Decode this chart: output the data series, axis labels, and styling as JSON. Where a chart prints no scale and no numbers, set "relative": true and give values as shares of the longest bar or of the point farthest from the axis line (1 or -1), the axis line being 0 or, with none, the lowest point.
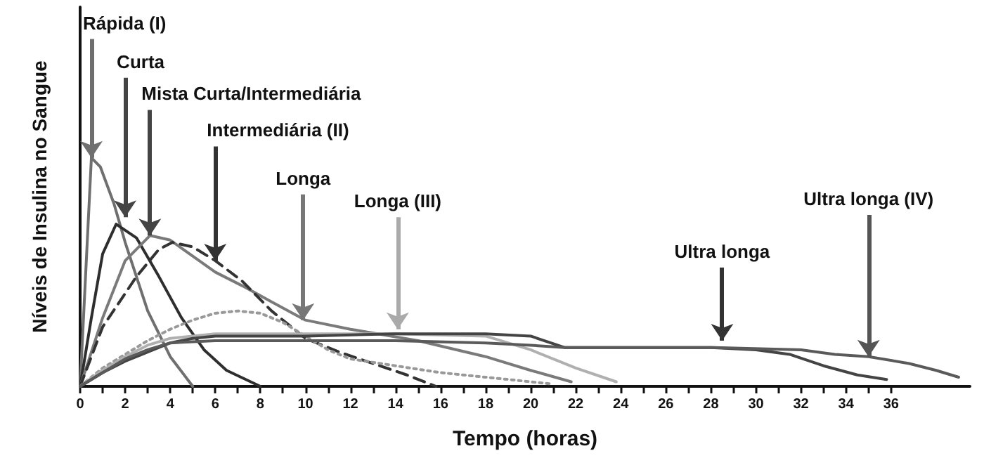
{
  "chart_data": {
    "type": "line",
    "xlabel": "Tempo (horas)",
    "ylabel": "Níveis de Insulina no Sangue",
    "relative": true,
    "grid": false,
    "marker": "none",
    "xlim": [
      0,
      39.5
    ],
    "xticks": [
      0,
      {
        "value": 1,
        "label": null
      },
      2,
      {
        "value": 3,
        "label": null
      },
      4,
      {
        "value": 5,
        "label": null
      },
      6,
      {
        "value": 7,
        "label": null
      },
      8,
      {
        "value": 9,
        "label": null
      },
      10,
      {
        "value": 11,
        "label": null
      },
      12,
      {
        "value": 13,
        "label": null
      },
      14,
      {
        "value": 15,
        "label": null
      },
      16,
      {
        "value": 17,
        "label": null
      },
      18,
      {
        "value": 19,
        "label": null
      },
      20,
      {
        "value": 21,
        "label": null
      },
      22,
      {
        "value": 23,
        "label": null
      },
      24,
      {
        "value": 25,
        "label": null
      },
      26,
      {
        "value": 27,
        "label": null
      },
      28,
      {
        "value": 29,
        "label": null
      },
      30,
      {
        "value": 31,
        "label": null
      },
      32,
      {
        "value": 33,
        "label": null
      },
      34,
      {
        "value": 35,
        "label": null
      },
      36
    ],
    "series": [
      {
        "color": "#6f6f6f",
        "line_style": "solid",
        "x": [
          0,
          0.25,
          0.5,
          0.9,
          1.5,
          2,
          3,
          4,
          5
        ],
        "values": [
          0,
          0.5,
          1,
          0.96,
          0.8,
          0.63,
          0.33,
          0.13,
          0
        ]
      },
      {
        "color": "#2e2e2e",
        "line_style": "solid",
        "x": [
          0,
          0.5,
          1,
          1.6,
          2.5,
          3.5,
          4.5,
          5.5,
          6.5,
          8
        ],
        "values": [
          0,
          0.3,
          0.58,
          0.71,
          0.65,
          0.48,
          0.3,
          0.16,
          0.07,
          0
        ]
      },
      {
        "color": "#7a7a7a",
        "line_style": "solid",
        "x": [
          0,
          1,
          2,
          3.1,
          4,
          5,
          6,
          7.2,
          8.5,
          10,
          12,
          15,
          18,
          20,
          21.8
        ],
        "values": [
          0,
          0.3,
          0.55,
          0.66,
          0.64,
          0.57,
          0.5,
          0.44,
          0.37,
          0.29,
          0.25,
          0.2,
          0.13,
          0.07,
          0.02
        ]
      },
      {
        "color": "#333333",
        "line_style": "dashed",
        "x": [
          0,
          1,
          2.5,
          3.5,
          4.1,
          5,
          6,
          7.2,
          8.5,
          10,
          11.5,
          13,
          14.5,
          15.8
        ],
        "values": [
          0,
          0.26,
          0.48,
          0.6,
          0.63,
          0.61,
          0.55,
          0.46,
          0.33,
          0.21,
          0.15,
          0.1,
          0.05,
          0
        ]
      },
      {
        "color": "#999999",
        "line_style": "dotted",
        "x": [
          0,
          1,
          2,
          3,
          4,
          5,
          6,
          7,
          8,
          9,
          10,
          11,
          12,
          14,
          16,
          18,
          21
        ],
        "values": [
          0,
          0.08,
          0.14,
          0.2,
          0.25,
          0.29,
          0.32,
          0.33,
          0.32,
          0.28,
          0.22,
          0.16,
          0.12,
          0.09,
          0.06,
          0.04,
          0.01
        ]
      },
      {
        "color": "#b0b0b0",
        "line_style": "solid",
        "x": [
          0,
          1,
          2,
          3,
          4,
          6,
          10,
          14,
          18,
          20,
          22,
          23.8
        ],
        "values": [
          0,
          0.07,
          0.13,
          0.18,
          0.21,
          0.23,
          0.23,
          0.23,
          0.22,
          0.16,
          0.08,
          0.02
        ]
      },
      {
        "color": "#444444",
        "line_style": "solid",
        "x": [
          0,
          1,
          2,
          3,
          4,
          5,
          6,
          10,
          14,
          18,
          20,
          21.5,
          24,
          28,
          30,
          31.5,
          33,
          34.5,
          35.8
        ],
        "values": [
          0,
          0.06,
          0.11,
          0.15,
          0.19,
          0.21,
          0.22,
          0.22,
          0.23,
          0.23,
          0.22,
          0.17,
          0.17,
          0.17,
          0.16,
          0.14,
          0.09,
          0.05,
          0.03
        ]
      },
      {
        "color": "#5a5a5a",
        "line_style": "solid",
        "x": [
          0,
          1,
          2,
          3,
          4,
          6,
          10,
          14,
          18,
          20,
          21.5,
          28,
          32,
          33.5,
          35,
          36.8,
          38,
          39
        ],
        "values": [
          0,
          0.06,
          0.12,
          0.16,
          0.19,
          0.2,
          0.2,
          0.2,
          0.19,
          0.18,
          0.17,
          0.17,
          0.16,
          0.14,
          0.13,
          0.1,
          0.07,
          0.04
        ]
      }
    ],
    "annotations": [
      {
        "text": "Rápida (I)",
        "x": 0.5,
        "y": 1
      },
      {
        "text": "Curta",
        "x": 2,
        "y": 0.74
      },
      {
        "text": "Mista Curta/Intermediária",
        "x": 3.1,
        "y": 0.66
      },
      {
        "text": "Intermediária (II)",
        "x": 6,
        "y": 0.55
      },
      {
        "text": "Longa",
        "x": 9.9,
        "y": 0.29
      },
      {
        "text": "Longa (III)",
        "x": 14.1,
        "y": 0.25
      },
      {
        "text": "Ultra longa",
        "x": 28.5,
        "y": 0.2
      },
      {
        "text": "Ultra longa (IV)",
        "x": 35,
        "y": 0.13
      }
    ]
  }
}
